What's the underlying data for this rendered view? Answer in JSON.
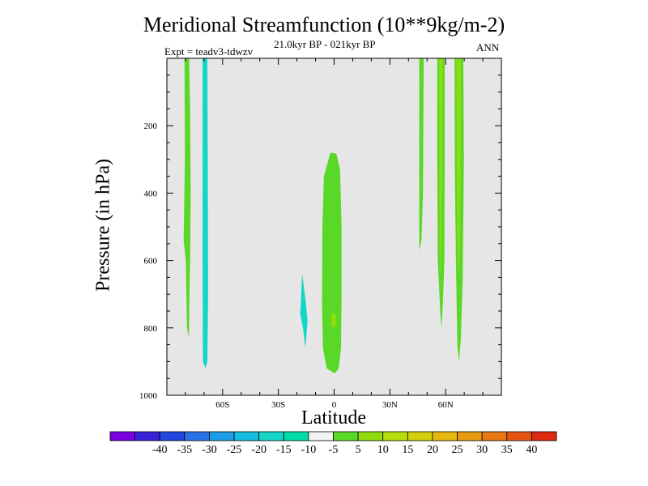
{
  "chart_data": {
    "type": "heatmap",
    "title": "Meridional Streamfunction (10**9kg/m-2)",
    "subtitle": "21.0kyr BP - 021kyr BP",
    "experiment": "Expt = teadv3-tdwzv",
    "season": "ANN",
    "xlabel": "Latitude",
    "ylabel": "Pressure (in hPa)",
    "xlim": [
      -90,
      90
    ],
    "ylim": [
      1000,
      0
    ],
    "x_ticks": [
      {
        "value": -60,
        "label": "60S"
      },
      {
        "value": -30,
        "label": "30S"
      },
      {
        "value": 0,
        "label": "0"
      },
      {
        "value": 30,
        "label": "30N"
      },
      {
        "value": 60,
        "label": "60N"
      }
    ],
    "y_ticks": [
      {
        "value": 200,
        "label": "200"
      },
      {
        "value": 400,
        "label": "400"
      },
      {
        "value": 600,
        "label": "600"
      },
      {
        "value": 800,
        "label": "800"
      },
      {
        "value": 1000,
        "label": "1000"
      }
    ],
    "background_color": "#e6e6e6",
    "colorbar": {
      "colors": [
        "#7a00e0",
        "#3a1fd8",
        "#2346e0",
        "#2a72e8",
        "#1e9ee6",
        "#14bede",
        "#14d6c8",
        "#00dcaa",
        "#f2f2f2",
        "#5ad828",
        "#8edc10",
        "#b6dc0a",
        "#d6d00c",
        "#e6b80e",
        "#e89a10",
        "#e87812",
        "#e45410",
        "#dc2a10"
      ],
      "labels": [
        "-40",
        "-35",
        "-30",
        "-25",
        "-20",
        "-15",
        "-10",
        "-5",
        "5",
        "10",
        "15",
        "20",
        "25",
        "30",
        "35",
        "40"
      ]
    },
    "regions": [
      {
        "name": "southern-band-positive",
        "color": "#5ad828",
        "points": [
          [
            -80.5,
            0
          ],
          [
            -78,
            0
          ],
          [
            -77.5,
            150
          ],
          [
            -77.2,
            400
          ],
          [
            -77.5,
            600
          ],
          [
            -78.2,
            830
          ],
          [
            -79.2,
            800
          ],
          [
            -79.8,
            600
          ],
          [
            -81,
            540
          ],
          [
            -80.3,
            300
          ]
        ]
      },
      {
        "name": "southern-band-negative",
        "color": "#14d6c8",
        "points": [
          [
            -70.8,
            0
          ],
          [
            -68.2,
            0
          ],
          [
            -68,
            300
          ],
          [
            -67.8,
            700
          ],
          [
            -68.2,
            900
          ],
          [
            -69.2,
            920
          ],
          [
            -70.6,
            900
          ],
          [
            -70.8,
            600
          ]
        ]
      },
      {
        "name": "tropical-negative-cell",
        "color": "#14d6c8",
        "points": [
          [
            -17.2,
            640
          ],
          [
            -15.3,
            720
          ],
          [
            -14.3,
            780
          ],
          [
            -15.5,
            860
          ],
          [
            -16.8,
            800
          ],
          [
            -18.2,
            760
          ]
        ]
      },
      {
        "name": "equatorial-positive-cell",
        "color": "#5ad828",
        "points": [
          [
            -2,
            280
          ],
          [
            1.2,
            283
          ],
          [
            3.2,
            330
          ],
          [
            4,
            500
          ],
          [
            4,
            700
          ],
          [
            3.7,
            860
          ],
          [
            2.5,
            920
          ],
          [
            0.3,
            935
          ],
          [
            -4,
            920
          ],
          [
            -6,
            860
          ],
          [
            -6.5,
            730
          ],
          [
            -6.3,
            500
          ],
          [
            -5.5,
            350
          ]
        ]
      },
      {
        "name": "equatorial-inner-maximum",
        "color": "#8edc10",
        "points": [
          [
            -1.5,
            755
          ],
          [
            1,
            760
          ],
          [
            1.3,
            790
          ],
          [
            0.3,
            800
          ],
          [
            -1.6,
            795
          ]
        ]
      },
      {
        "name": "northern-band-positive-1",
        "color": "#5ad828",
        "points": [
          [
            45.8,
            0
          ],
          [
            48.2,
            0
          ],
          [
            48,
            200
          ],
          [
            47.8,
            400
          ],
          [
            47,
            540
          ],
          [
            45.8,
            570
          ],
          [
            45.8,
            400
          ]
        ]
      },
      {
        "name": "northern-band-positive-2",
        "color": "#5ad828",
        "points": [
          [
            55.5,
            0
          ],
          [
            59.5,
            0
          ],
          [
            59.5,
            300
          ],
          [
            59.3,
            600
          ],
          [
            58.5,
            730
          ],
          [
            57.8,
            800
          ],
          [
            57.2,
            760
          ],
          [
            55.8,
            600
          ],
          [
            55.5,
            300
          ]
        ]
      },
      {
        "name": "northern-band-inner-2",
        "color": "#8edc10",
        "points": [
          [
            56.6,
            0
          ],
          [
            58.5,
            0
          ],
          [
            58.3,
            200
          ],
          [
            58,
            380
          ],
          [
            57.6,
            560
          ],
          [
            57.2,
            650
          ],
          [
            56.8,
            560
          ],
          [
            56.7,
            300
          ]
        ]
      },
      {
        "name": "northern-band-positive-3",
        "color": "#5ad828",
        "points": [
          [
            64.8,
            0
          ],
          [
            69.5,
            0
          ],
          [
            69.8,
            300
          ],
          [
            69.2,
            650
          ],
          [
            68.2,
            830
          ],
          [
            67.2,
            900
          ],
          [
            66.3,
            850
          ],
          [
            65.6,
            620
          ],
          [
            65,
            350
          ]
        ]
      },
      {
        "name": "northern-band-inner-3",
        "color": "#8edc10",
        "points": [
          [
            65.8,
            0
          ],
          [
            68.2,
            0
          ],
          [
            68.2,
            200
          ],
          [
            67.9,
            400
          ],
          [
            67.6,
            560
          ],
          [
            67.1,
            650
          ],
          [
            66.6,
            560
          ],
          [
            66.1,
            400
          ]
        ]
      }
    ]
  }
}
